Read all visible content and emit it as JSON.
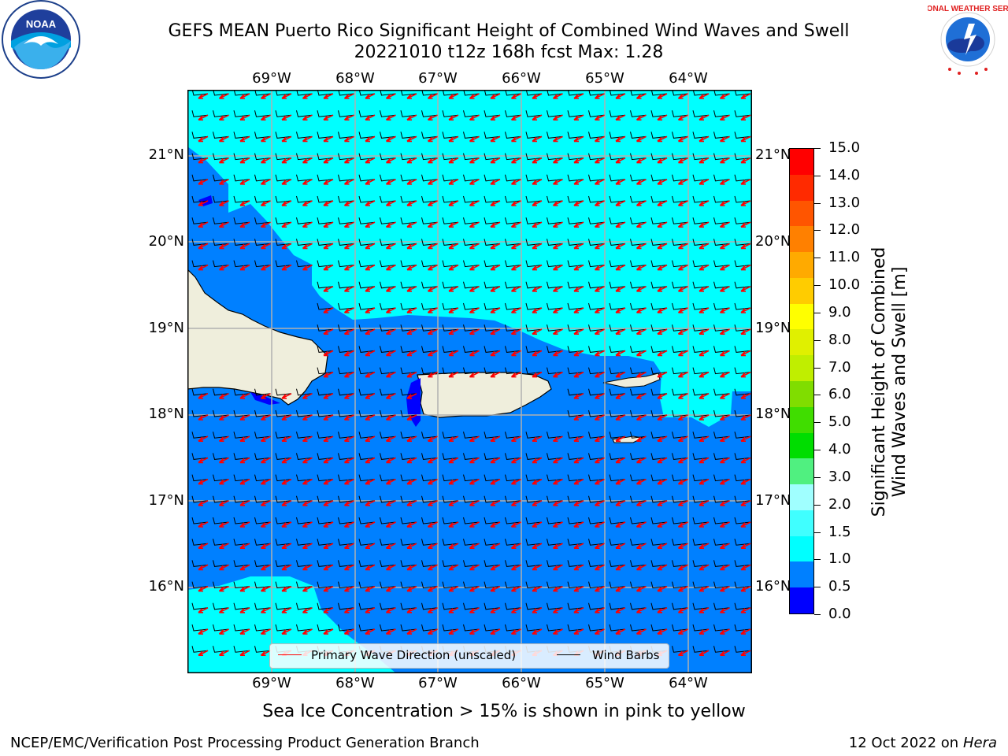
{
  "title": {
    "line1": "GEFS MEAN Puerto Rico Significant Height of Combined Wind Waves and Swell",
    "line2": "20221010 t12z 168h fcst   Max: 1.28"
  },
  "logos": {
    "left": "NOAA",
    "right_text": "NATIONAL WEATHER SERVICE"
  },
  "map": {
    "lon_labels": [
      "69°W",
      "68°W",
      "67°W",
      "66°W",
      "65°W",
      "64°W"
    ],
    "lat_labels": [
      "21°N",
      "20°N",
      "19°N",
      "18°N",
      "17°N",
      "16°N"
    ],
    "colors": {
      "ocean_light": "#00ffff",
      "ocean_mid": "#0080ff",
      "ocean_dark": "#0000ff",
      "land": "#efeedc",
      "arrow": "#ff0000",
      "barb": "#000000"
    }
  },
  "legend": {
    "primary_wave": "Primary Wave Direction (unscaled)",
    "wind_barbs": "Wind Barbs"
  },
  "colorbar": {
    "title_line1": "Significant Height of Combined",
    "title_line2": "Wind Waves and Swell [m]",
    "ticks": [
      "15.0",
      "14.0",
      "13.0",
      "12.0",
      "11.0",
      "10.0",
      "9.0",
      "8.0",
      "7.0",
      "6.0",
      "5.0",
      "4.0",
      "3.0",
      "2.0",
      "1.5",
      "1.0",
      "0.5",
      "0.0"
    ],
    "colors": [
      "#0000ff",
      "#0080ff",
      "#00ffff",
      "#40ffff",
      "#a0ffff",
      "#50f080",
      "#00dd00",
      "#40dd00",
      "#80dd00",
      "#c0ee00",
      "#e0f000",
      "#ffff00",
      "#ffcc00",
      "#ffaa00",
      "#ff8000",
      "#ff5500",
      "#ff2a00",
      "#ff0000"
    ]
  },
  "caption": "Sea Ice Concentration > 15% is shown in pink to yellow",
  "footer": {
    "left": "NCEP/EMC/Verification Post Processing Product Generation Branch",
    "right_date": "12 Oct 2022 on ",
    "right_host": "Hera"
  }
}
